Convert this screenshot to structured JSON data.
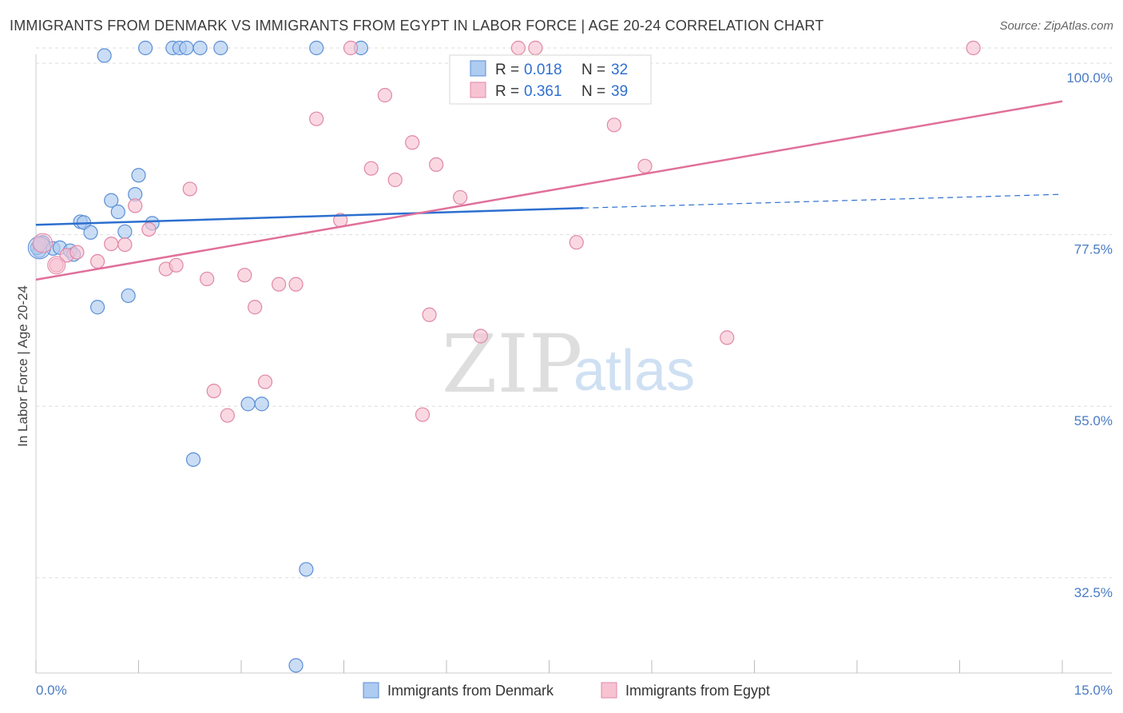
{
  "title": "IMMIGRANTS FROM DENMARK VS IMMIGRANTS FROM EGYPT IN LABOR FORCE | AGE 20-24 CORRELATION CHART",
  "source": "Source: ZipAtlas.com",
  "watermark": {
    "zip": "ZIP",
    "atlas": "atlas"
  },
  "legend": {
    "r_label": "R =",
    "n_label": "N =",
    "series": [
      {
        "r": "0.018",
        "n": "32"
      },
      {
        "r": "0.361",
        "n": "39"
      }
    ]
  },
  "bottom_legend": [
    "Immigrants from Denmark",
    "Immigrants from Egypt"
  ],
  "colors": {
    "denmark_fill": "#aecbf0",
    "denmark_stroke": "#5b8fd6",
    "denmark_line": "#2d6fcf",
    "egypt_fill": "#f7c3d3",
    "egypt_stroke": "#e087a6",
    "egypt_line": "#e0709a",
    "tick_text": "#4a7bc4",
    "grid": "#dddddd"
  },
  "chart_data": {
    "type": "scatter",
    "xlabel": "",
    "ylabel": "In Labor Force | Age 20-24",
    "x_tick_labels": [
      "0.0%",
      "15.0%"
    ],
    "y_tick_labels": [
      "100.0%",
      "77.5%",
      "55.0%",
      "32.5%"
    ],
    "y_ticks": [
      100.0,
      77.5,
      55.0,
      32.5
    ],
    "xlim": [
      0,
      15
    ],
    "ylim": [
      20.0,
      102.0
    ],
    "grid": true,
    "series": [
      {
        "name": "Immigrants from Denmark",
        "points": [
          [
            0.05,
            75.4
          ],
          [
            0.1,
            76.5
          ],
          [
            0.25,
            75.7
          ],
          [
            0.35,
            75.8
          ],
          [
            0.5,
            75.4
          ],
          [
            0.55,
            74.9
          ],
          [
            0.65,
            79.2
          ],
          [
            0.7,
            79.1
          ],
          [
            0.8,
            77.8
          ],
          [
            0.9,
            68.0
          ],
          [
            1.0,
            101.0
          ],
          [
            1.1,
            82.0
          ],
          [
            1.2,
            80.5
          ],
          [
            1.3,
            77.9
          ],
          [
            1.35,
            69.5
          ],
          [
            1.45,
            82.8
          ],
          [
            1.5,
            85.3
          ],
          [
            1.6,
            102.0
          ],
          [
            1.7,
            79.0
          ],
          [
            2.0,
            102.0
          ],
          [
            2.1,
            102.0
          ],
          [
            2.2,
            102.0
          ],
          [
            2.3,
            48.0
          ],
          [
            2.4,
            102.0
          ],
          [
            2.7,
            102.0
          ],
          [
            3.1,
            55.3
          ],
          [
            3.3,
            55.3
          ],
          [
            3.8,
            21.0
          ],
          [
            3.95,
            33.6
          ],
          [
            4.1,
            102.0
          ],
          [
            4.75,
            102.0
          ],
          [
            0.02,
            75.8
          ]
        ],
        "trend": {
          "x0": 0.0,
          "y0": 78.8,
          "x1": 8.0,
          "y1": 81.0,
          "x_end": 15.0,
          "y_end": 82.8
        }
      },
      {
        "name": "Immigrants from Egypt",
        "points": [
          [
            0.05,
            76.2
          ],
          [
            0.3,
            73.5
          ],
          [
            0.45,
            74.8
          ],
          [
            0.6,
            75.2
          ],
          [
            0.9,
            74.0
          ],
          [
            1.1,
            76.3
          ],
          [
            1.3,
            76.2
          ],
          [
            1.45,
            81.3
          ],
          [
            1.65,
            78.2
          ],
          [
            1.9,
            73.0
          ],
          [
            2.05,
            73.5
          ],
          [
            2.25,
            83.5
          ],
          [
            2.5,
            71.7
          ],
          [
            2.6,
            57.0
          ],
          [
            2.8,
            53.8
          ],
          [
            3.05,
            72.2
          ],
          [
            3.2,
            68.0
          ],
          [
            3.35,
            58.2
          ],
          [
            3.55,
            71.0
          ],
          [
            3.8,
            71.0
          ],
          [
            4.1,
            92.7
          ],
          [
            4.45,
            79.4
          ],
          [
            4.6,
            102.0
          ],
          [
            4.9,
            86.2
          ],
          [
            5.1,
            95.8
          ],
          [
            5.25,
            84.7
          ],
          [
            5.5,
            89.6
          ],
          [
            5.65,
            53.9
          ],
          [
            5.75,
            67.0
          ],
          [
            5.85,
            86.7
          ],
          [
            6.2,
            82.4
          ],
          [
            6.5,
            64.2
          ],
          [
            7.05,
            102.0
          ],
          [
            7.3,
            102.0
          ],
          [
            7.9,
            76.5
          ],
          [
            8.45,
            91.9
          ],
          [
            8.9,
            86.5
          ],
          [
            10.1,
            64.0
          ],
          [
            13.7,
            102.0
          ]
        ],
        "trend": {
          "x0": 0.0,
          "y0": 71.6,
          "x1": 15.0,
          "y1": 95.0
        }
      }
    ]
  }
}
